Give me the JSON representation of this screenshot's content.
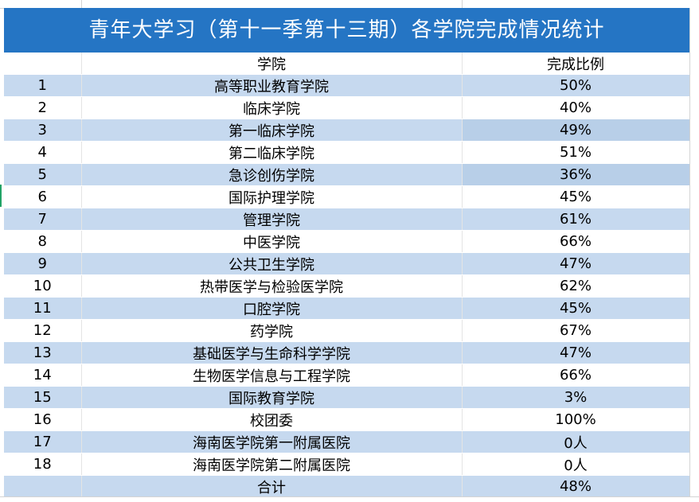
{
  "title": "青年大学习（第十一季第十三期）各学院完成情况统计",
  "headers": {
    "index": "",
    "college": "学院",
    "ratio": "完成比例"
  },
  "rows": [
    {
      "index": "1",
      "college": "高等职业教育学院",
      "ratio": "50%"
    },
    {
      "index": "2",
      "college": "临床学院",
      "ratio": "40%"
    },
    {
      "index": "3",
      "college": "第一临床学院",
      "ratio": "49%"
    },
    {
      "index": "4",
      "college": "第二临床学院",
      "ratio": "51%"
    },
    {
      "index": "5",
      "college": "急诊创伤学院",
      "ratio": "36%"
    },
    {
      "index": "6",
      "college": "国际护理学院",
      "ratio": "45%"
    },
    {
      "index": "7",
      "college": "管理学院",
      "ratio": "61%"
    },
    {
      "index": "8",
      "college": "中医学院",
      "ratio": "66%"
    },
    {
      "index": "9",
      "college": "公共卫生学院",
      "ratio": "47%"
    },
    {
      "index": "10",
      "college": "热带医学与检验医学院",
      "ratio": "62%"
    },
    {
      "index": "11",
      "college": "口腔学院",
      "ratio": "45%"
    },
    {
      "index": "12",
      "college": "药学院",
      "ratio": "67%"
    },
    {
      "index": "13",
      "college": "基础医学与生命科学学院",
      "ratio": "47%"
    },
    {
      "index": "14",
      "college": "生物医学信息与工程学院",
      "ratio": "66%"
    },
    {
      "index": "15",
      "college": "国际教育学院",
      "ratio": "3%"
    },
    {
      "index": "16",
      "college": "校团委",
      "ratio": "100%"
    },
    {
      "index": "17",
      "college": "海南医学院第一附属医院",
      "ratio": "0人"
    },
    {
      "index": "18",
      "college": "海南医学院第二附属医院",
      "ratio": "0人"
    }
  ],
  "total": {
    "label": "合计",
    "ratio": "48%"
  },
  "colors": {
    "title_bg": "#2575c4",
    "title_text": "#ffffff",
    "band": "#c6d9ef",
    "band_highlight": "#b8cfe8",
    "selection_mark": "#21a366"
  }
}
